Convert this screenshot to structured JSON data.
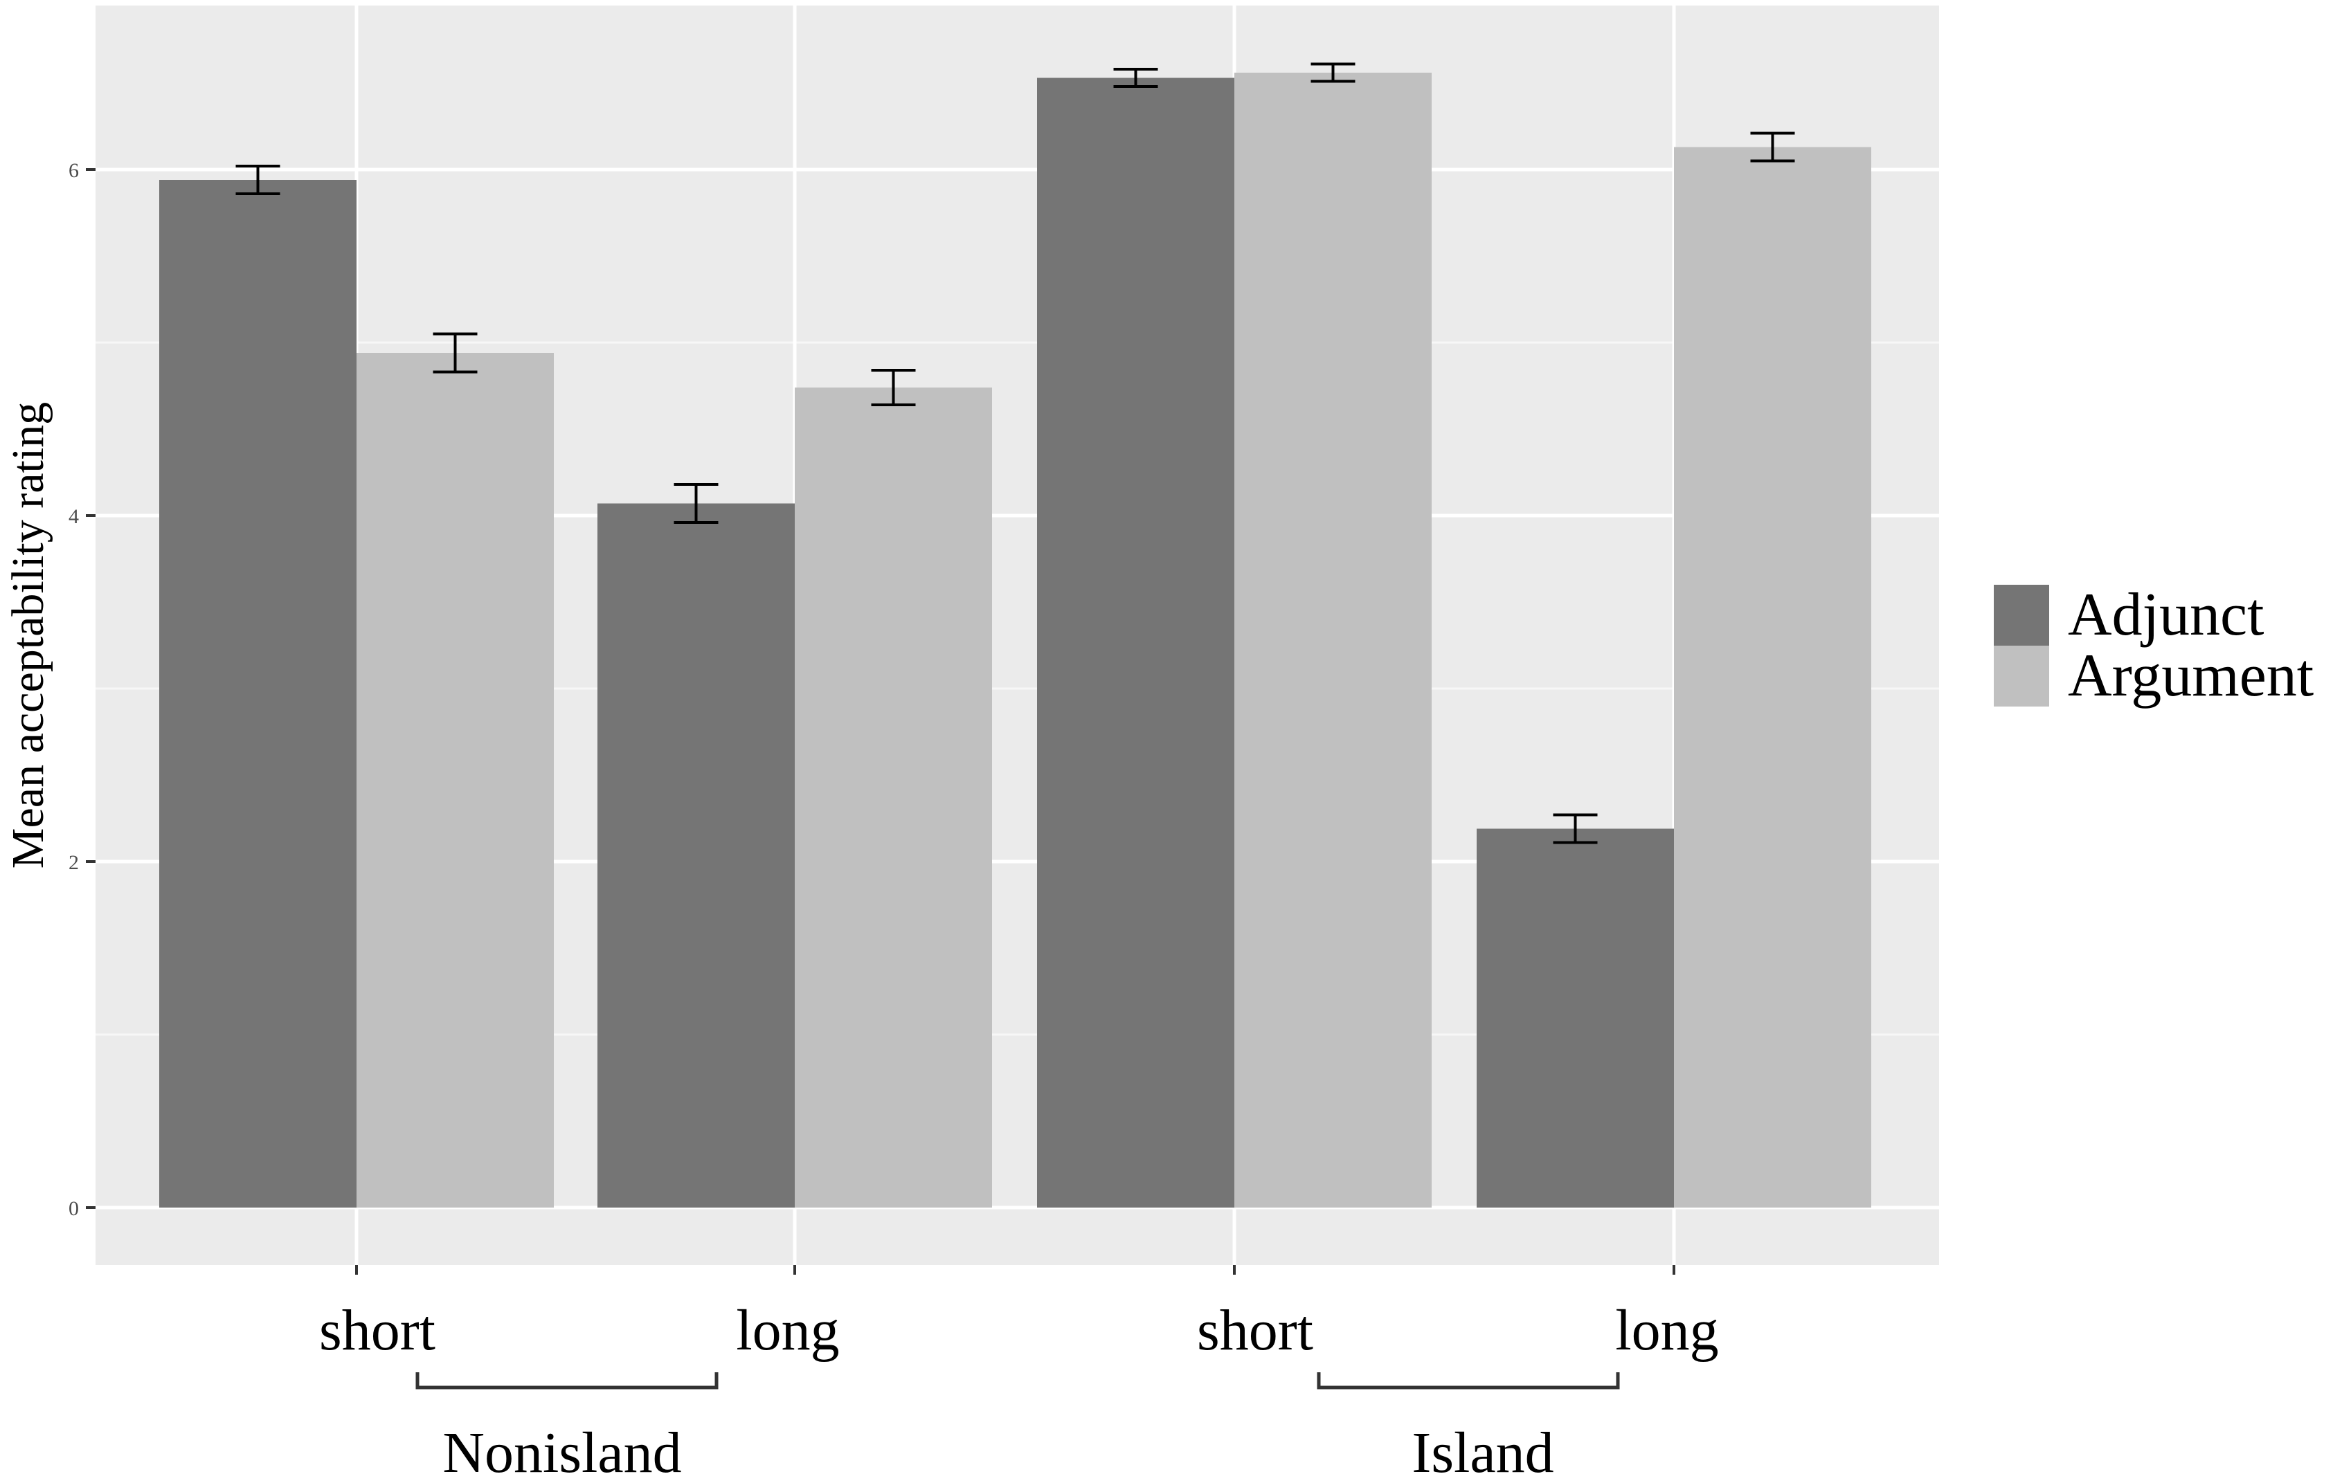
{
  "chart_data": {
    "type": "bar",
    "categories": [
      "short",
      "long",
      "short",
      "long"
    ],
    "groups": [
      {
        "label": "Nonisland",
        "categories": [
          0,
          1
        ]
      },
      {
        "label": "Island",
        "categories": [
          2,
          3
        ]
      }
    ],
    "series": [
      {
        "name": "Adjunct",
        "color": "#757575",
        "values": [
          5.94,
          4.07,
          6.53,
          2.19
        ],
        "errors": [
          0.08,
          0.11,
          0.05,
          0.08
        ]
      },
      {
        "name": "Argument",
        "color": "#c0c0c0",
        "values": [
          4.94,
          4.74,
          6.56,
          6.13
        ],
        "errors": [
          0.11,
          0.1,
          0.05,
          0.08
        ]
      }
    ],
    "ylabel": "Mean acceptability rating",
    "xlabel": "",
    "yticks": [
      0,
      2,
      4,
      6
    ],
    "ylim": [
      -0.33,
      6.9
    ],
    "grid": true,
    "legend_position": "right",
    "panel_color": "#ebebeb"
  }
}
